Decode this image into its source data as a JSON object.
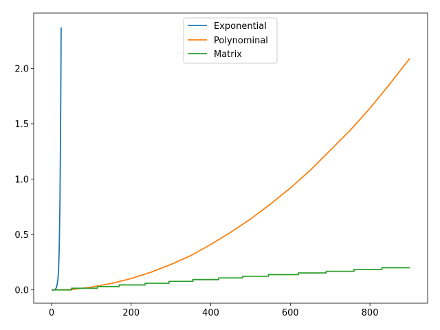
{
  "chart_data": {
    "type": "line",
    "title": "",
    "xlabel": "",
    "ylabel": "",
    "xlim": [
      -45,
      945
    ],
    "ylim": [
      -0.12,
      2.5
    ],
    "xticks": [
      0,
      200,
      400,
      600,
      800
    ],
    "yticks": [
      0.0,
      0.5,
      1.0,
      1.5,
      2.0
    ],
    "xtick_labels": [
      "0",
      "200",
      "400",
      "600",
      "800"
    ],
    "ytick_labels": [
      "0.0",
      "0.5",
      "1.0",
      "1.5",
      "2.0"
    ],
    "grid": false,
    "legend_position": "upper center",
    "series": [
      {
        "name": "Exponential",
        "color": "#1f77b4",
        "style": "curve",
        "x": [
          0,
          8,
          10,
          12,
          14,
          16,
          17,
          18,
          19,
          20,
          21,
          22,
          23,
          24
        ],
        "y": [
          0,
          0,
          0.01,
          0.02,
          0.05,
          0.1,
          0.15,
          0.23,
          0.35,
          0.55,
          0.8,
          1.2,
          1.7,
          2.37
        ]
      },
      {
        "name": "Polynominal",
        "color": "#ff7f0e",
        "style": "curve",
        "x": [
          0,
          50,
          100,
          150,
          200,
          250,
          300,
          350,
          400,
          450,
          500,
          550,
          600,
          650,
          700,
          750,
          800,
          850,
          900
        ],
        "y": [
          0,
          0.003,
          0.025,
          0.058,
          0.103,
          0.16,
          0.23,
          0.31,
          0.41,
          0.52,
          0.64,
          0.775,
          0.92,
          1.08,
          1.26,
          1.44,
          1.64,
          1.86,
          2.09
        ]
      },
      {
        "name": "Matrix",
        "color": "#2ca02c",
        "style": "step",
        "x": [
          0,
          50,
          115,
          170,
          235,
          295,
          355,
          420,
          480,
          545,
          620,
          690,
          760,
          830,
          900
        ],
        "y": [
          0,
          0.015,
          0.03,
          0.045,
          0.06,
          0.077,
          0.093,
          0.108,
          0.123,
          0.138,
          0.153,
          0.168,
          0.184,
          0.2,
          0.2
        ]
      }
    ]
  }
}
